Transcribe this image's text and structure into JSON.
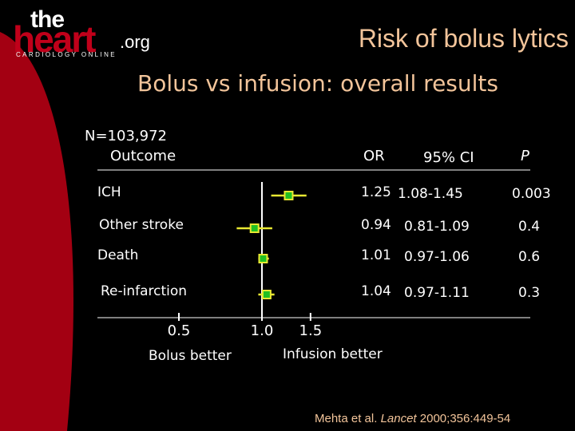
{
  "logo": {
    "part1": "the",
    "part2": "heart",
    "part3": ".org",
    "tagline": "CARDIOLOGY ONLINE"
  },
  "slide_title": "Risk of bolus lytics",
  "subtitle": "Bolus vs infusion: overall results",
  "n_label": "N=103,972",
  "headers": {
    "outcome": "Outcome",
    "or": "OR",
    "ci": "95% CI",
    "p": "P"
  },
  "axis": {
    "left_label": "Bolus better",
    "right_label": "Infusion better"
  },
  "citation": {
    "authors": "Mehta et al.",
    "journal": "Lancet",
    "rest": "2000;356:449-54"
  },
  "colors": {
    "background": "#000000",
    "accent_text": "#f2c49a",
    "marker_fill": "#22c022",
    "marker_edge": "#e8e832",
    "ci_line": "#e8e832",
    "red_shape": "#a30012",
    "logo_red": "#c0001a"
  },
  "chart_data": {
    "type": "forest",
    "title": "Bolus vs infusion: overall results",
    "x_scale": "log",
    "xlim": [
      0.5,
      1.5
    ],
    "reference_line": 1.0,
    "ticks": [
      {
        "value": 0.5,
        "label": "0.5"
      },
      {
        "value": 1.0,
        "label": "1.0"
      },
      {
        "value": 1.5,
        "label": "1.5"
      }
    ],
    "rows": [
      {
        "outcome": "ICH",
        "or": 1.25,
        "or_text": "1.25",
        "ci_low": 1.08,
        "ci_high": 1.45,
        "ci_text": "1.08-1.45",
        "p": "0.003"
      },
      {
        "outcome": "Other stroke",
        "or": 0.94,
        "or_text": "0.94",
        "ci_low": 0.81,
        "ci_high": 1.09,
        "ci_text": "0.81-1.09",
        "p": "0.4"
      },
      {
        "outcome": "Death",
        "or": 1.01,
        "or_text": "1.01",
        "ci_low": 0.97,
        "ci_high": 1.06,
        "ci_text": "0.97-1.06",
        "p": "0.6"
      },
      {
        "outcome": "Re-infarction",
        "or": 1.04,
        "or_text": "1.04",
        "ci_low": 0.97,
        "ci_high": 1.11,
        "ci_text": "0.97-1.11",
        "p": "0.3"
      }
    ]
  }
}
